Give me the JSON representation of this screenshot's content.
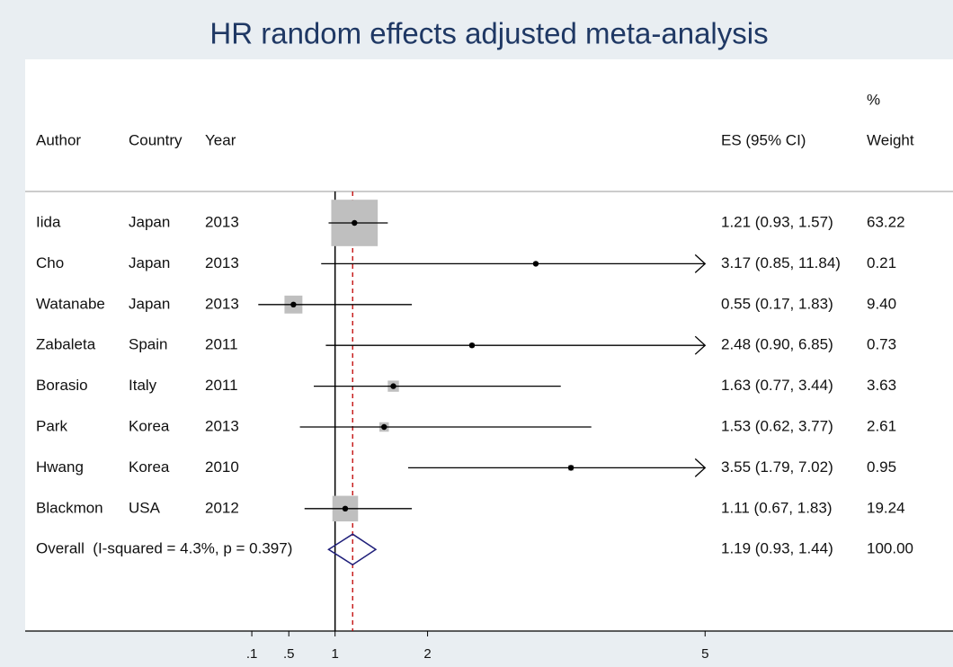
{
  "chart_data": {
    "type": "forest",
    "title": "HR random effects adjusted meta-analysis",
    "headers": {
      "author": "Author",
      "country": "Country",
      "year": "Year",
      "es": "ES (95% CI)",
      "weight_top": "%",
      "weight": "Weight"
    },
    "rows": [
      {
        "author": "Iida",
        "country": "Japan",
        "year": 2013,
        "es": 1.21,
        "lower": 0.93,
        "upper": 1.57,
        "es_label": "1.21 (0.93, 1.57)",
        "weight": 63.22,
        "weight_label": "63.22"
      },
      {
        "author": "Cho",
        "country": "Japan",
        "year": 2013,
        "es": 3.17,
        "lower": 0.85,
        "upper": 11.84,
        "es_label": "3.17 (0.85, 11.84)",
        "weight": 0.21,
        "weight_label": "0.21"
      },
      {
        "author": "Watanabe",
        "country": "Japan",
        "year": 2013,
        "es": 0.55,
        "lower": 0.17,
        "upper": 1.83,
        "es_label": "0.55 (0.17, 1.83)",
        "weight": 9.4,
        "weight_label": "9.40"
      },
      {
        "author": "Zabaleta",
        "country": "Spain",
        "year": 2011,
        "es": 2.48,
        "lower": 0.9,
        "upper": 6.85,
        "es_label": "2.48 (0.90, 6.85)",
        "weight": 0.73,
        "weight_label": "0.73"
      },
      {
        "author": "Borasio",
        "country": "Italy",
        "year": 2011,
        "es": 1.63,
        "lower": 0.77,
        "upper": 3.44,
        "es_label": "1.63 (0.77, 3.44)",
        "weight": 3.63,
        "weight_label": "3.63"
      },
      {
        "author": "Park",
        "country": "Korea",
        "year": 2013,
        "es": 1.53,
        "lower": 0.62,
        "upper": 3.77,
        "es_label": "1.53 (0.62, 3.77)",
        "weight": 2.61,
        "weight_label": "2.61"
      },
      {
        "author": "Hwang",
        "country": "Korea",
        "year": 2010,
        "es": 3.55,
        "lower": 1.79,
        "upper": 7.02,
        "es_label": "3.55 (1.79, 7.02)",
        "weight": 0.95,
        "weight_label": "0.95"
      },
      {
        "author": "Blackmon",
        "country": "USA",
        "year": 2012,
        "es": 1.11,
        "lower": 0.67,
        "upper": 1.83,
        "es_label": "1.11 (0.67, 1.83)",
        "weight": 19.24,
        "weight_label": "19.24"
      }
    ],
    "overall": {
      "label": "Overall  (I-squared = 4.3%, p = 0.397)",
      "es": 1.19,
      "lower": 0.93,
      "upper": 1.44,
      "es_label": "1.19 (0.93, 1.44)",
      "weight": 100,
      "weight_label": "100.00"
    },
    "null_line": 1,
    "xlim": [
      -2.35,
      7.68
    ],
    "xticks": [
      {
        "value": 0.1,
        "label": ".1"
      },
      {
        "value": 0.5,
        "label": ".5"
      },
      1,
      2,
      5
    ],
    "box_color": "#bfbfbf",
    "diamond_color": "#1f1f7a",
    "overall_line_color": "#c00000",
    "title_color": "#1f3864"
  }
}
